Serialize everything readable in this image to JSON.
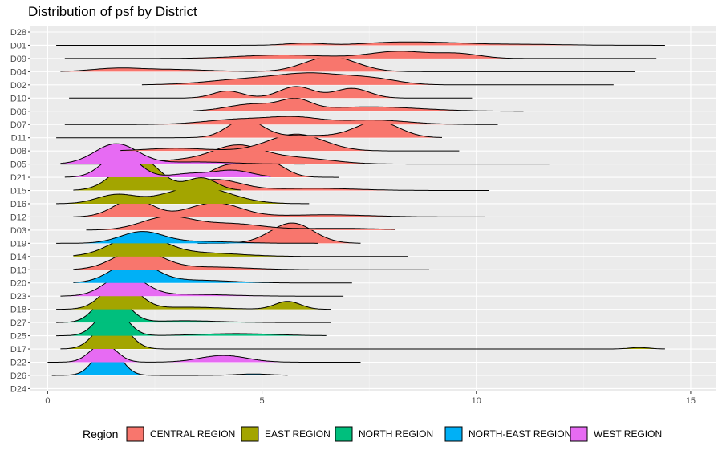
{
  "chart_data": {
    "type": "ridgeline",
    "title": "Distribution of psf by District",
    "xlabel": "",
    "ylabel": "",
    "xlim": [
      -0.4,
      15.6
    ],
    "x_ticks": [
      0,
      5,
      10,
      15
    ],
    "x_tick_labels": [
      "0",
      "5",
      "10",
      "15"
    ],
    "grid": true,
    "legend": {
      "title": "Region",
      "position": "bottom",
      "entries": [
        "CENTRAL REGION",
        "EAST REGION",
        "NORTH REGION",
        "NORTH-EAST REGION",
        "WEST REGION"
      ]
    },
    "region_colors": {
      "CENTRAL REGION": "#F8766D",
      "EAST REGION": "#A3A500",
      "NORTH REGION": "#00BF7D",
      "NORTH-EAST REGION": "#00B0F6",
      "WEST REGION": "#E76BF3"
    },
    "background_color": "#EBEBEB",
    "districts": [
      {
        "name": "D28",
        "region": "NORTH-EAST REGION",
        "peaks": []
      },
      {
        "name": "D01",
        "region": "CENTRAL REGION",
        "range": [
          0.2,
          14.4
        ],
        "peaks": [
          [
            6.0,
            0.45,
            0.12
          ],
          [
            8.0,
            0.7,
            0.15
          ],
          [
            9.2,
            0.7,
            0.12
          ],
          [
            11.0,
            1.0,
            0.06
          ]
        ]
      },
      {
        "name": "D09",
        "region": "CENTRAL REGION",
        "range": [
          0.4,
          14.2
        ],
        "peaks": [
          [
            5.5,
            1.0,
            0.2
          ],
          [
            8.2,
            0.7,
            0.4
          ],
          [
            9.6,
            0.5,
            0.25
          ]
        ]
      },
      {
        "name": "D04",
        "region": "CENTRAL REGION",
        "range": [
          0.3,
          13.7
        ],
        "peaks": [
          [
            1.6,
            0.6,
            0.18
          ],
          [
            3.0,
            0.8,
            0.12
          ],
          [
            6.6,
            0.6,
            0.85
          ]
        ]
      },
      {
        "name": "D02",
        "region": "CENTRAL REGION",
        "range": [
          2.2,
          13.2
        ],
        "peaks": [
          [
            4.6,
            0.9,
            0.3
          ],
          [
            6.2,
            0.8,
            0.6
          ],
          [
            7.6,
            0.6,
            0.3
          ]
        ]
      },
      {
        "name": "D10",
        "region": "CENTRAL REGION",
        "range": [
          0.5,
          9.9
        ],
        "peaks": [
          [
            4.2,
            0.35,
            0.4
          ],
          [
            5.8,
            0.4,
            0.65
          ],
          [
            7.1,
            0.4,
            0.55
          ]
        ]
      },
      {
        "name": "D06",
        "region": "CENTRAL REGION",
        "range": [
          3.4,
          11.1
        ],
        "peaks": [
          [
            4.8,
            0.6,
            0.4
          ],
          [
            5.8,
            0.35,
            0.55
          ],
          [
            7.5,
            1.2,
            0.25
          ]
        ]
      },
      {
        "name": "D07",
        "region": "CENTRAL REGION",
        "range": [
          0.4,
          10.5
        ],
        "peaks": [
          [
            4.5,
            0.8,
            0.3
          ],
          [
            5.8,
            0.6,
            0.35
          ],
          [
            7.6,
            0.8,
            0.25
          ]
        ]
      },
      {
        "name": "D11",
        "region": "CENTRAL REGION",
        "range": [
          0.2,
          9.2
        ],
        "peaks": [
          [
            4.6,
            0.4,
            1.0
          ],
          [
            7.7,
            0.5,
            0.9
          ],
          [
            6.0,
            1.0,
            0.12
          ]
        ]
      },
      {
        "name": "D08",
        "region": "CENTRAL REGION",
        "range": [
          1.7,
          9.6
        ],
        "peaks": [
          [
            3.0,
            0.7,
            0.15
          ],
          [
            5.8,
            0.65,
            0.95
          ]
        ]
      },
      {
        "name": "D05",
        "region": "CENTRAL REGION",
        "range": [
          0.3,
          11.7
        ],
        "peaks": [
          [
            4.4,
            0.6,
            1.0
          ],
          [
            5.8,
            0.8,
            0.35
          ],
          [
            3.0,
            0.6,
            0.2
          ]
        ]
      },
      {
        "name": "D05",
        "region": "WEST REGION",
        "range": [
          0.3,
          6.0
        ],
        "peaks": [
          [
            1.6,
            0.5,
            1.15
          ],
          [
            3.5,
            0.8,
            0.12
          ]
        ]
      },
      {
        "name": "D21",
        "region": "CENTRAL REGION",
        "range": [
          3.3,
          6.8
        ],
        "peaks": [
          [
            4.2,
            0.35,
            0.65
          ],
          [
            5.1,
            0.4,
            0.95
          ]
        ]
      },
      {
        "name": "D21",
        "region": "WEST REGION",
        "range": [
          0.4,
          5.2
        ],
        "peaks": [
          [
            1.7,
            0.4,
            1.4
          ],
          [
            3.3,
            0.4,
            0.2
          ],
          [
            4.3,
            0.45,
            0.4
          ]
        ]
      },
      {
        "name": "D15",
        "region": "CENTRAL REGION",
        "range": [
          2.0,
          10.3
        ],
        "peaks": [
          [
            4.0,
            0.55,
            0.55
          ],
          [
            3.0,
            0.6,
            0.25
          ],
          [
            6.2,
            1.0,
            0.12
          ]
        ]
      },
      {
        "name": "D15",
        "region": "EAST REGION",
        "range": [
          0.6,
          4.5
        ],
        "peaks": [
          [
            2.1,
            0.5,
            1.9
          ],
          [
            3.6,
            0.35,
            0.7
          ]
        ]
      },
      {
        "name": "D16",
        "region": "EAST REGION",
        "range": [
          0.2,
          6.1
        ],
        "peaks": [
          [
            1.6,
            0.45,
            0.5
          ],
          [
            3.5,
            0.75,
            0.95
          ]
        ]
      },
      {
        "name": "D12",
        "region": "CENTRAL REGION",
        "range": [
          0.6,
          10.2
        ],
        "peaks": [
          [
            2.0,
            0.45,
            1.0
          ],
          [
            3.9,
            0.6,
            0.8
          ],
          [
            6.5,
            1.0,
            0.12
          ]
        ]
      },
      {
        "name": "D03",
        "region": "CENTRAL REGION",
        "range": [
          0.9,
          8.1
        ],
        "peaks": [
          [
            2.8,
            0.6,
            0.75
          ],
          [
            4.3,
            0.7,
            0.35
          ],
          [
            6.8,
            1.0,
            0.1
          ]
        ]
      },
      {
        "name": "D19",
        "region": "CENTRAL REGION",
        "range": [
          3.5,
          7.3
        ],
        "peaks": [
          [
            5.7,
            0.5,
            1.15
          ]
        ]
      },
      {
        "name": "D19",
        "region": "NORTH-EAST REGION",
        "range": [
          0.2,
          6.3
        ],
        "peaks": [
          [
            2.2,
            0.5,
            0.65
          ],
          [
            3.6,
            0.8,
            0.1
          ]
        ]
      },
      {
        "name": "D14",
        "region": "EAST REGION",
        "range": [
          0.6,
          8.4
        ],
        "peaks": [
          [
            2.1,
            0.6,
            1.2
          ],
          [
            3.6,
            0.9,
            0.2
          ]
        ]
      },
      {
        "name": "D13",
        "region": "CENTRAL REGION",
        "range": [
          0.6,
          8.9
        ],
        "peaks": [
          [
            2.1,
            0.55,
            1.1
          ],
          [
            3.8,
            0.9,
            0.15
          ]
        ]
      },
      {
        "name": "D20",
        "region": "NORTH-EAST REGION",
        "range": [
          0.6,
          7.1
        ],
        "peaks": [
          [
            2.0,
            0.5,
            1.2
          ],
          [
            3.5,
            0.8,
            0.15
          ]
        ]
      },
      {
        "name": "D23",
        "region": "WEST REGION",
        "range": [
          0.3,
          6.9
        ],
        "peaks": [
          [
            1.8,
            0.45,
            1.2
          ],
          [
            3.3,
            0.9,
            0.1
          ]
        ]
      },
      {
        "name": "D18",
        "region": "EAST REGION",
        "range": [
          0.2,
          6.6
        ],
        "peaks": [
          [
            1.7,
            0.4,
            1.55
          ],
          [
            3.3,
            0.8,
            0.12
          ],
          [
            5.6,
            0.3,
            0.45
          ]
        ]
      },
      {
        "name": "D27",
        "region": "NORTH REGION",
        "range": [
          0.2,
          6.6
        ],
        "peaks": [
          [
            1.5,
            0.35,
            1.7
          ],
          [
            3.2,
            0.8,
            0.1
          ]
        ]
      },
      {
        "name": "D25",
        "region": "NORTH REGION",
        "range": [
          0.2,
          6.5
        ],
        "peaks": [
          [
            1.5,
            0.33,
            1.6
          ],
          [
            4.4,
            0.9,
            0.12
          ]
        ]
      },
      {
        "name": "D17",
        "region": "EAST REGION",
        "range": [
          0.3,
          14.4
        ],
        "peaks": [
          [
            1.5,
            0.35,
            1.8
          ],
          [
            13.8,
            0.25,
            0.08
          ]
        ]
      },
      {
        "name": "D22",
        "region": "WEST REGION",
        "range": [
          0.0,
          7.3
        ],
        "peaks": [
          [
            1.3,
            0.3,
            1.05
          ],
          [
            4.1,
            0.55,
            0.38
          ]
        ]
      },
      {
        "name": "D26",
        "region": "NORTH-EAST REGION",
        "range": [
          0.1,
          5.6
        ],
        "peaks": [
          [
            1.4,
            0.3,
            1.65
          ],
          [
            4.8,
            0.4,
            0.08
          ]
        ]
      },
      {
        "name": "D24",
        "region": "NORTH-EAST REGION",
        "peaks": []
      }
    ]
  }
}
